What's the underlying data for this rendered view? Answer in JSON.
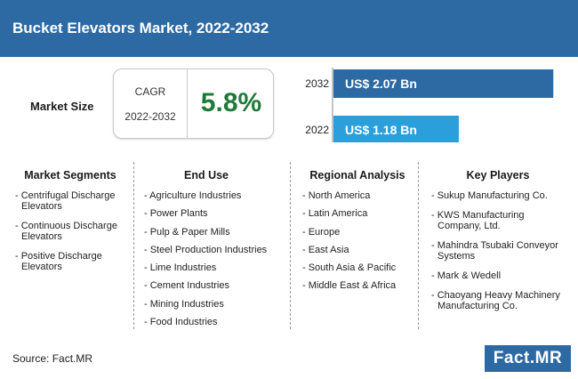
{
  "header": {
    "title": "Bucket Elevators Market, 2022-2032"
  },
  "market_size": {
    "label": "Market Size",
    "cagr_label": "CAGR",
    "cagr_period": "2022-2032",
    "cagr_value": "5.8%"
  },
  "chart_data": {
    "type": "bar",
    "orientation": "horizontal",
    "categories": [
      "2032",
      "2022"
    ],
    "values": [
      2.07,
      1.18
    ],
    "value_labels": [
      "US$ 2.07 Bn",
      "US$ 1.18 Bn"
    ],
    "colors": [
      "#2d6aa3",
      "#2b9fdc"
    ],
    "title": "",
    "xlabel": "",
    "ylabel": "",
    "xlim": [
      0,
      2.16
    ],
    "grid": false
  },
  "columns": [
    {
      "title": "Market Segments",
      "items": [
        "- Centrifugal Discharge Elevators",
        "- Continuous Discharge Elevators",
        "- Positive Discharge Elevators"
      ]
    },
    {
      "title": "End Use",
      "items": [
        "- Agriculture Industries",
        "- Power Plants",
        "- Pulp & Paper Mills",
        "- Steel Production Industries",
        "- Lime Industries",
        "- Cement Industries",
        "- Mining Industries",
        "- Food Industries"
      ]
    },
    {
      "title": "Regional Analysis",
      "items": [
        "- North America",
        "- Latin America",
        "- Europe",
        "- East Asia",
        "- South Asia & Pacific",
        "- Middle East & Africa"
      ]
    },
    {
      "title": "Key Players",
      "items": [
        "- Sukup Manufacturing Co.",
        "- KWS Manufacturing Company, Ltd.",
        "- Mahindra Tsubaki Conveyor Systems",
        "- Mark & Wedell",
        "- Chaoyang Heavy Machinery Manufacturing Co."
      ]
    }
  ],
  "footer": {
    "source": "Source: Fact.MR",
    "logo_text": "Fact.MR"
  }
}
